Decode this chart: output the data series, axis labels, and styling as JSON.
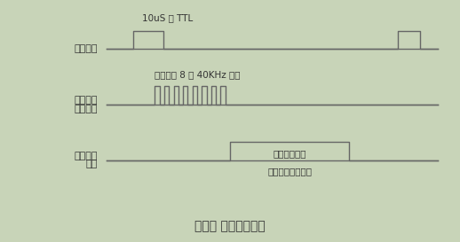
{
  "outer_bg": "#c8d4b8",
  "inner_bg": "#ffffff",
  "title": "图二、 超声波时序图",
  "title_fontsize": 10,
  "signal1_label": "触发信号",
  "signal2_label_line1": "模块内部",
  "signal2_label_line2": "发出信号",
  "signal3_label_line1": "输出回响",
  "signal3_label_line2": "信号",
  "annotation1": "10uS 的 TTL",
  "annotation2": "循环发出 8 个 40KHz 脉冲",
  "annotation3_line1": "回响电平输出",
  "annotation3_line2": "与检测距离成比例",
  "line_color": "#666666",
  "text_color": "#333333"
}
